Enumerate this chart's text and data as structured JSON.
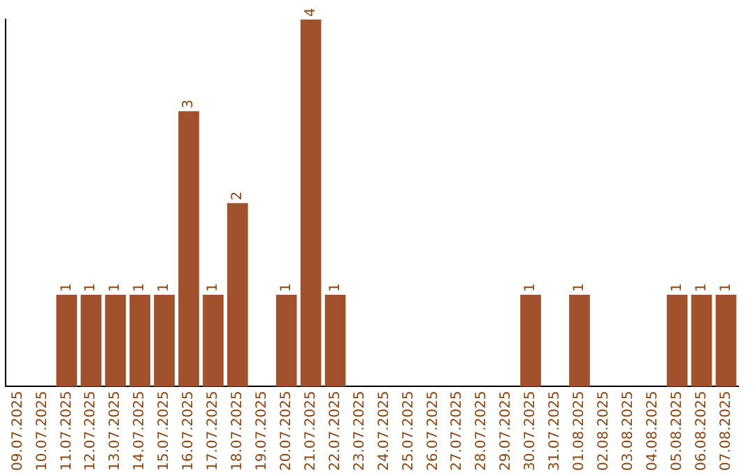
{
  "chart_data": {
    "type": "bar",
    "categories": [
      "09.07.2025",
      "10.07.2025",
      "11.07.2025",
      "12.07.2025",
      "13.07.2025",
      "14.07.2025",
      "15.07.2025",
      "16.07.2025",
      "17.07.2025",
      "18.07.2025",
      "19.07.2025",
      "20.07.2025",
      "21.07.2025",
      "22.07.2025",
      "23.07.2025",
      "24.07.2025",
      "25.07.2025",
      "26.07.2025",
      "27.07.2025",
      "28.07.2025",
      "29.07.2025",
      "30.07.2025",
      "31.07.2025",
      "01.08.2025",
      "02.08.2025",
      "03.08.2025",
      "04.08.2025",
      "05.08.2025",
      "06.08.2025",
      "07.08.2025"
    ],
    "values": [
      0,
      0,
      1,
      1,
      1,
      1,
      1,
      3,
      1,
      2,
      0,
      1,
      4,
      1,
      0,
      0,
      0,
      0,
      0,
      0,
      0,
      1,
      0,
      1,
      0,
      0,
      0,
      1,
      1,
      1
    ],
    "value_labels": [
      null,
      null,
      "1",
      "1",
      "1",
      "1",
      "1",
      "3",
      "1",
      "2",
      null,
      "1",
      "4",
      "1",
      null,
      null,
      null,
      null,
      null,
      null,
      null,
      "1",
      null,
      "1",
      null,
      null,
      null,
      "1",
      "1",
      "1"
    ],
    "color": "#a0522d",
    "tick_labels": "x",
    "grid": false,
    "legend": false
  }
}
